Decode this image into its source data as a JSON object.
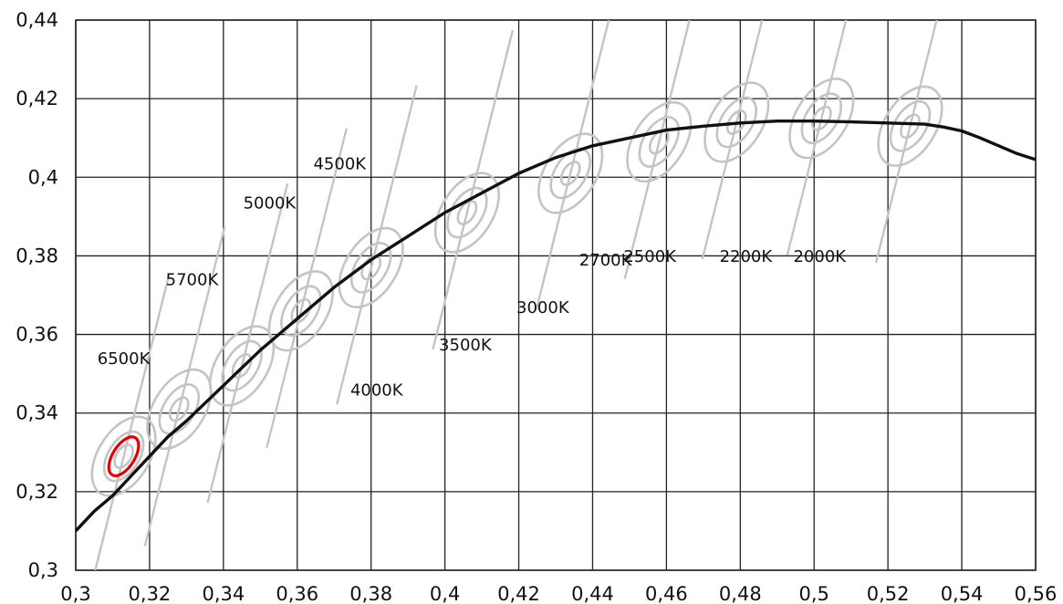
{
  "chart_data": {
    "type": "line",
    "title": "",
    "xlabel": "",
    "ylabel": "",
    "xlim": [
      0.3,
      0.56
    ],
    "ylim": [
      0.3,
      0.44
    ],
    "grid": true,
    "x_ticks": [
      0.3,
      0.32,
      0.34,
      0.36,
      0.38,
      0.4,
      0.42,
      0.44,
      0.46,
      0.48,
      0.5,
      0.52,
      0.54,
      0.56
    ],
    "x_tick_labels": [
      "0,3",
      "0,32",
      "0,34",
      "0,36",
      "0,38",
      "0,4",
      "0,42",
      "0,44",
      "0,46",
      "0,48",
      "0,5",
      "0,52",
      "0,54",
      "0,56"
    ],
    "y_ticks": [
      0.3,
      0.32,
      0.34,
      0.36,
      0.38,
      0.4,
      0.42,
      0.44
    ],
    "y_tick_labels": [
      "0,3",
      "0,32",
      "0,34",
      "0,36",
      "0,38",
      "0,4",
      "0,42",
      "0,44"
    ],
    "colors": {
      "curve": "#111111",
      "ellipse": "#c4c4c4",
      "isotherm": "#c4c4c4",
      "highlight": "#e60000",
      "grid": "#222222"
    },
    "planckian_locus": {
      "x": [
        0.3,
        0.305,
        0.31,
        0.315,
        0.32,
        0.325,
        0.33,
        0.34,
        0.35,
        0.36,
        0.37,
        0.38,
        0.39,
        0.4,
        0.41,
        0.42,
        0.43,
        0.44,
        0.45,
        0.46,
        0.47,
        0.48,
        0.49,
        0.5,
        0.51,
        0.52,
        0.53,
        0.535,
        0.54,
        0.545,
        0.55,
        0.555,
        0.56
      ],
      "y": [
        0.31,
        0.315,
        0.319,
        0.324,
        0.329,
        0.334,
        0.338,
        0.347,
        0.356,
        0.364,
        0.372,
        0.379,
        0.385,
        0.391,
        0.396,
        0.401,
        0.405,
        0.408,
        0.41,
        0.412,
        0.413,
        0.4138,
        0.4143,
        0.4143,
        0.4141,
        0.4138,
        0.4135,
        0.4128,
        0.4118,
        0.41,
        0.408,
        0.406,
        0.4045
      ]
    },
    "cct_points": [
      {
        "label": "6500K",
        "x": 0.313,
        "y": 0.329,
        "label_x": 0.313,
        "label_y": 0.3525
      },
      {
        "label": "5700K",
        "x": 0.328,
        "y": 0.341,
        "label_x": 0.3315,
        "label_y": 0.3725
      },
      {
        "label": "5000K",
        "x": 0.345,
        "y": 0.352,
        "label_x": 0.3525,
        "label_y": 0.392
      },
      {
        "label": "4500K",
        "x": 0.361,
        "y": 0.366,
        "label_x": 0.3715,
        "label_y": 0.402
      },
      {
        "label": "4000K",
        "x": 0.38,
        "y": 0.377,
        "label_x": 0.3815,
        "label_y": 0.3445
      },
      {
        "label": "3500K",
        "x": 0.406,
        "y": 0.391,
        "label_x": 0.4055,
        "label_y": 0.356
      },
      {
        "label": "3000K",
        "x": 0.434,
        "y": 0.401,
        "label_x": 0.4265,
        "label_y": 0.3655
      },
      {
        "label": "2700K",
        "x": 0.458,
        "y": 0.409,
        "label_x": 0.4435,
        "label_y": 0.3775
      },
      {
        "label": "2500K",
        "x": 0.479,
        "y": 0.414,
        "label_x": 0.4555,
        "label_y": 0.3785
      },
      {
        "label": "2200K",
        "x": 0.502,
        "y": 0.415,
        "label_x": 0.4815,
        "label_y": 0.3785
      },
      {
        "label": "2000K",
        "x": 0.526,
        "y": 0.413,
        "label_x": 0.5015,
        "label_y": 0.3785
      }
    ],
    "highlighted_point": "6500K"
  }
}
